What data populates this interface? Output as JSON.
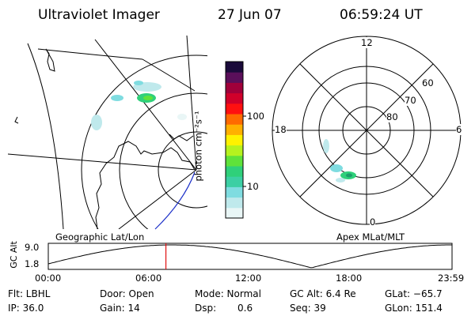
{
  "header": {
    "instrument": "Ultraviolet Imager",
    "date": "27 Jun 07",
    "time": "06:59:24 UT"
  },
  "colorbar": {
    "unit_label": "photon cm⁻²s⁻¹",
    "ticks": [
      "100",
      "10"
    ],
    "colors": [
      "#e9f6f6",
      "#bfe9ec",
      "#7fdce0",
      "#3ccfa4",
      "#2fd07a",
      "#5fe23a",
      "#b6f21e",
      "#fff200",
      "#ffb000",
      "#ff6a00",
      "#ff1010",
      "#d0002a",
      "#a0003a",
      "#5a0f5a",
      "#1a0a3a"
    ]
  },
  "geo_panel": {
    "label": "Geographic Lat/Lon"
  },
  "polar_panel": {
    "label": "Apex MLat/MLT",
    "mlt_labels": {
      "top": "12",
      "left": "18",
      "right": "6",
      "bottom": "0"
    },
    "lat_labels": [
      "60",
      "70",
      "80"
    ]
  },
  "altitude_plot": {
    "axis_label": "GC Alt",
    "y_ticks": [
      "9.0",
      "1.8"
    ],
    "x_ticks": [
      "00:00",
      "06:00",
      "12:00",
      "18:00",
      "23:59"
    ],
    "current_time_fraction": 0.2913,
    "marker_color": "#e01010"
  },
  "status": {
    "flt": "Flt: LBHL",
    "ip": "IP: 36.0",
    "door": "Door: Open",
    "gain": "Gain: 14",
    "mode": "Mode: Normal",
    "dsp_label": "Dsp:",
    "dsp_value": "0.6",
    "gc_alt": "GC Alt: 6.4 Re",
    "seq": "Seq: 39",
    "glat": "GLat: −65.7",
    "glon": "GLon: 151.4"
  }
}
